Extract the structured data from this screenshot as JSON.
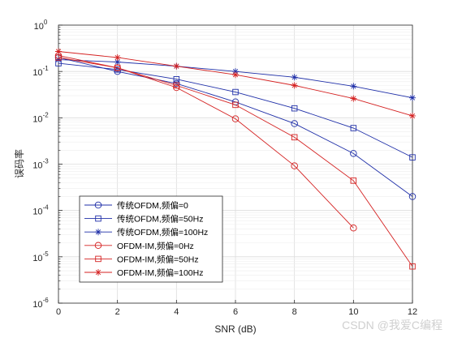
{
  "chart_data": {
    "type": "line",
    "xlabel": "SNR (dB)",
    "ylabel": "误码率",
    "xlim": [
      0,
      12
    ],
    "ylim": [
      1e-06,
      1
    ],
    "yscale": "log",
    "grid": true,
    "legend_location": "bottom-left",
    "xticks": [
      "0",
      "2",
      "4",
      "6",
      "8",
      "10",
      "12"
    ],
    "yticks": [
      {
        "base": "10",
        "exp": "0"
      },
      {
        "base": "10",
        "exp": "-1"
      },
      {
        "base": "10",
        "exp": "-2"
      },
      {
        "base": "10",
        "exp": "-3"
      },
      {
        "base": "10",
        "exp": "-4"
      },
      {
        "base": "10",
        "exp": "-5"
      },
      {
        "base": "10",
        "exp": "-6"
      }
    ],
    "x": [
      0,
      2,
      4,
      6,
      8,
      10,
      12
    ],
    "series": [
      {
        "name": "传统OFDM,频偏=0",
        "color": "#1f2fa8",
        "marker": "circle",
        "values": [
          0.2,
          0.1,
          0.055,
          0.022,
          0.0075,
          0.0017,
          0.0002
        ]
      },
      {
        "name": "传统OFDM,频偏=50Hz",
        "color": "#1f2fa8",
        "marker": "square",
        "values": [
          0.15,
          0.11,
          0.068,
          0.036,
          0.016,
          0.006,
          0.0014
        ]
      },
      {
        "name": "传统OFDM,频偏=100Hz",
        "color": "#1f2fa8",
        "marker": "star",
        "values": [
          0.18,
          0.16,
          0.13,
          0.1,
          0.075,
          0.048,
          0.027
        ]
      },
      {
        "name": "OFDM-IM,频偏=0Hz",
        "color": "#d42020",
        "marker": "circle",
        "values": [
          0.22,
          0.12,
          0.045,
          0.0095,
          0.00092,
          4.2e-05,
          null
        ]
      },
      {
        "name": "OFDM-IM,频偏=50Hz",
        "color": "#d42020",
        "marker": "square",
        "values": [
          0.2,
          0.12,
          0.05,
          0.019,
          0.0038,
          0.00044,
          6.2e-06
        ]
      },
      {
        "name": "OFDM-IM,频偏=100Hz",
        "color": "#d42020",
        "marker": "star",
        "values": [
          0.27,
          0.2,
          0.13,
          0.085,
          0.05,
          0.026,
          0.011
        ]
      }
    ]
  },
  "watermark": "CSDN @我爱C编程"
}
